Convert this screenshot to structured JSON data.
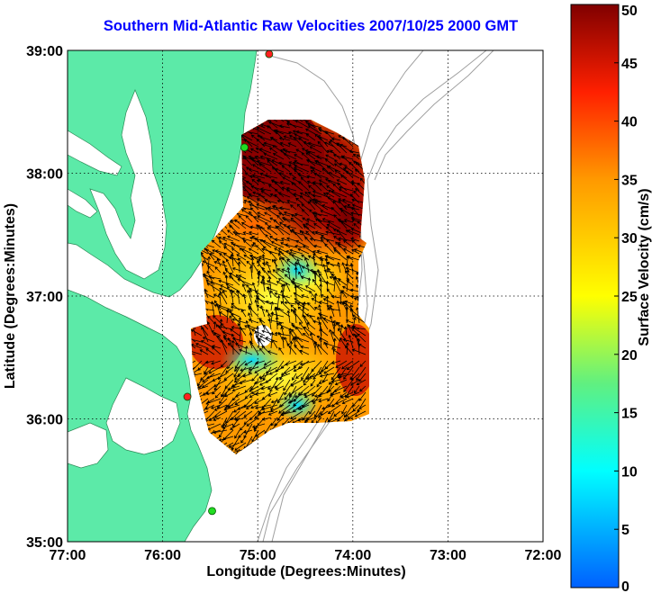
{
  "title": "Southern Mid-Atlantic Raw Velocities 2007/10/25 2000 GMT",
  "map": {
    "xlabel": "Longitude (Degrees:Minutes)",
    "ylabel": "Latitude (Degrees:Minutes)",
    "lon_range": [
      -77,
      -72
    ],
    "lat_range": [
      35,
      39
    ],
    "x_ticks": [
      "77:00",
      "76:00",
      "75:00",
      "74:00",
      "73:00",
      "72:00"
    ],
    "y_ticks": [
      "35:00",
      "36:00",
      "37:00",
      "38:00",
      "39:00"
    ],
    "stations": [
      {
        "lon": -74.88,
        "lat": 38.97,
        "color": "#ff2020"
      },
      {
        "lon": -75.14,
        "lat": 38.21,
        "color": "#22dd22"
      },
      {
        "lon": -75.74,
        "lat": 36.18,
        "color": "#ff2020"
      },
      {
        "lon": -75.48,
        "lat": 35.25,
        "color": "#22dd22"
      }
    ],
    "land_color": "#5ceaa8"
  },
  "colorbar": {
    "label": "Surface Velocity (cm/s)",
    "min": 0,
    "max": 50,
    "ticks": [
      "0",
      "5",
      "10",
      "15",
      "20",
      "25",
      "30",
      "35",
      "40",
      "45",
      "50"
    ]
  }
}
